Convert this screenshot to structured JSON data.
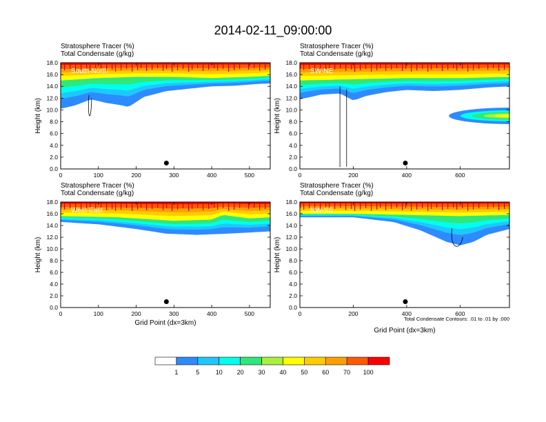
{
  "title": "2014-02-11_09:00:00",
  "colors": {
    "levels": [
      "#ffffff",
      "#2e8bff",
      "#1ec8ff",
      "#00ffee",
      "#2ee87a",
      "#00e000",
      "#a8f03c",
      "#ffff00",
      "#ffcc00",
      "#ffa000",
      "#ff5a00",
      "#ff0000"
    ]
  },
  "colorbar": {
    "labels": [
      "1",
      "5",
      "10",
      "20",
      "30",
      "40",
      "50",
      "60",
      "70",
      "100"
    ]
  },
  "chart_data": [
    {
      "type": "heatmap",
      "header_line1": "Stratosphere Tracer   (%)",
      "header_line2": "Total Condensate   (g/kg)",
      "panel_label": "South-North",
      "ylabel": "Height (km)",
      "xlabel": "",
      "xlim": [
        0,
        555
      ],
      "ylim": [
        0,
        18
      ],
      "xticks": [
        "0",
        "100",
        "200",
        "300",
        "400",
        "500"
      ],
      "xtick_values": [
        0,
        100,
        200,
        300,
        400,
        500
      ],
      "yticks": [
        "0.0",
        "2.0",
        "4.0",
        "6.0",
        "8.0",
        "10.0",
        "12.0",
        "14.0",
        "16.0",
        "18.0"
      ],
      "marker": {
        "x": 280,
        "y": 1.0
      },
      "blue_lower_edge": [
        [
          0,
          10.2
        ],
        [
          40,
          10.8
        ],
        [
          80,
          11.8
        ],
        [
          120,
          11.2
        ],
        [
          160,
          10.8
        ],
        [
          180,
          10.5
        ],
        [
          220,
          12.2
        ],
        [
          280,
          13.2
        ],
        [
          340,
          13.6
        ],
        [
          400,
          14.0
        ],
        [
          460,
          14.1
        ],
        [
          520,
          14.4
        ],
        [
          555,
          14.5
        ]
      ],
      "yellow_lower_edge": [
        [
          0,
          15.0
        ],
        [
          100,
          15.4
        ],
        [
          200,
          15.6
        ],
        [
          300,
          15.6
        ],
        [
          400,
          15.4
        ],
        [
          500,
          15.6
        ],
        [
          555,
          15.8
        ]
      ]
    },
    {
      "type": "heatmap",
      "header_line1": "Stratosphere Tracer   (%)",
      "header_line2": "Total Condensate   (g/kg)",
      "panel_label": "SW-NE",
      "ylabel": "Height (km)",
      "xlabel": "",
      "xlim": [
        0,
        785
      ],
      "ylim": [
        0,
        18
      ],
      "xticks": [
        "0",
        "200",
        "400",
        "600"
      ],
      "xtick_values": [
        0,
        200,
        400,
        600
      ],
      "yticks": [
        "0.0",
        "2.0",
        "4.0",
        "6.0",
        "8.0",
        "10.0",
        "12.0",
        "14.0",
        "16.0",
        "18.0"
      ],
      "marker": {
        "x": 395,
        "y": 1.0
      },
      "blue_lower_edge": [
        [
          0,
          11.8
        ],
        [
          80,
          12.6
        ],
        [
          150,
          12.8
        ],
        [
          200,
          11.6
        ],
        [
          250,
          12.4
        ],
        [
          320,
          13.0
        ],
        [
          400,
          13.4
        ],
        [
          500,
          13.2
        ],
        [
          600,
          13.4
        ],
        [
          700,
          13.8
        ],
        [
          785,
          14.0
        ]
      ],
      "yellow_lower_edge": [
        [
          0,
          15.0
        ],
        [
          200,
          15.2
        ],
        [
          400,
          15.4
        ],
        [
          600,
          15.4
        ],
        [
          785,
          15.6
        ]
      ]
    },
    {
      "type": "heatmap",
      "header_line1": "Stratosphere Tracer   (%)",
      "header_line2": "Total Condensate   (g/kg)",
      "panel_label": "West-East",
      "ylabel": "Height (km)",
      "xlabel": "Grid Point (dx=3km)",
      "xlim": [
        0,
        555
      ],
      "ylim": [
        0,
        18
      ],
      "xticks": [
        "0",
        "100",
        "200",
        "300",
        "400",
        "500"
      ],
      "xtick_values": [
        0,
        100,
        200,
        300,
        400,
        500
      ],
      "yticks": [
        "0.0",
        "2.0",
        "4.0",
        "6.0",
        "8.0",
        "10.0",
        "12.0",
        "14.0",
        "16.0",
        "18.0"
      ],
      "marker": {
        "x": 280,
        "y": 1.0
      },
      "blue_lower_edge": [
        [
          0,
          14.6
        ],
        [
          100,
          14.2
        ],
        [
          200,
          13.4
        ],
        [
          280,
          12.6
        ],
        [
          360,
          12.4
        ],
        [
          440,
          12.6
        ],
        [
          500,
          12.8
        ],
        [
          555,
          13.0
        ]
      ],
      "yellow_lower_edge": [
        [
          0,
          15.6
        ],
        [
          150,
          15.4
        ],
        [
          300,
          14.8
        ],
        [
          400,
          15.0
        ],
        [
          430,
          15.8
        ],
        [
          500,
          15.2
        ],
        [
          555,
          15.4
        ]
      ]
    },
    {
      "type": "heatmap",
      "header_line1": "Stratosphere Tracer   (%)",
      "header_line2": "Total Condensate   (g/kg)",
      "panel_label": "NW-SE",
      "ylabel": "Height (km)",
      "xlabel": "Grid Point (dx=3km)",
      "note": "Total Condensate Contours: .01 to .01 by .000",
      "xlim": [
        0,
        785
      ],
      "ylim": [
        0,
        18
      ],
      "xticks": [
        "0",
        "200",
        "400",
        "600"
      ],
      "xtick_values": [
        0,
        200,
        400,
        600
      ],
      "yticks": [
        "0.0",
        "2.0",
        "4.0",
        "6.0",
        "8.0",
        "10.0",
        "12.0",
        "14.0",
        "16.0",
        "18.0"
      ],
      "marker": {
        "x": 395,
        "y": 1.0
      },
      "blue_lower_edge": [
        [
          0,
          15.4
        ],
        [
          200,
          15.4
        ],
        [
          350,
          14.6
        ],
        [
          450,
          13.2
        ],
        [
          550,
          11.2
        ],
        [
          600,
          10.6
        ],
        [
          650,
          11.2
        ],
        [
          700,
          12.4
        ],
        [
          785,
          13.4
        ]
      ],
      "yellow_lower_edge": [
        [
          0,
          16.0
        ],
        [
          200,
          16.0
        ],
        [
          400,
          15.8
        ],
        [
          600,
          15.6
        ],
        [
          785,
          15.8
        ]
      ]
    }
  ]
}
